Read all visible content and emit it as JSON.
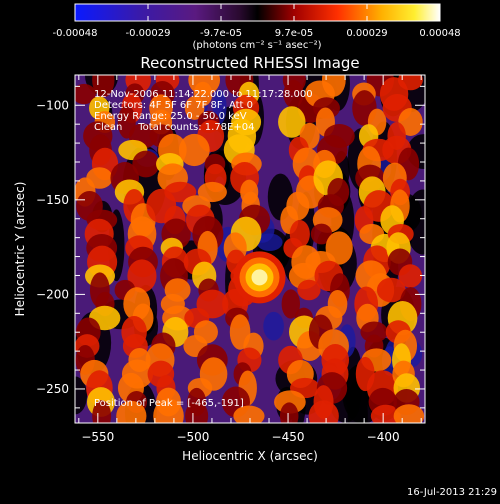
{
  "colorbar": {
    "ticks": [
      "-0.00048",
      "-0.00029",
      "-9.7e-05",
      "9.7e-05",
      "0.00029",
      "0.00048"
    ],
    "unit_label": "(photons cm⁻² s⁻¹ asec⁻²)",
    "vmin": -0.00048,
    "vmax": 0.00048
  },
  "title": "Reconstructed RHESSI Image",
  "info": {
    "time_range": "12-Nov-2006 11:14:22.000 to 11:17:28.000",
    "detectors": "Detectors: 4F 5F 6F 7F 8F, Att 0",
    "energy": "Energy Range: 25.0 - 50.0 keV",
    "algorithm": "Clean     Total counts: 1.78E+04",
    "peak": "Position of Peak = [-465,-191]"
  },
  "footer_timestamp": "16-Jul-2013 21:29",
  "chart_data": {
    "type": "heatmap",
    "title": "Reconstructed RHESSI Image",
    "xlabel": "Heliocentric X (arcsec)",
    "ylabel": "Heliocentric Y (arcsec)",
    "xlim": [
      -562,
      -378
    ],
    "ylim": [
      -268,
      -84
    ],
    "x_ticks": [
      -550,
      -500,
      -450,
      -400
    ],
    "y_ticks": [
      -250,
      -200,
      -150,
      -100
    ],
    "x_tick_labels": [
      "−550",
      "−500",
      "−450",
      "−400"
    ],
    "y_tick_labels": [
      "−250",
      "−200",
      "−150",
      "−100"
    ],
    "peak_position": [
      -465,
      -191
    ],
    "colormap": "RHESSI thermal (blue-purple-black-red-orange-yellow-white)"
  }
}
